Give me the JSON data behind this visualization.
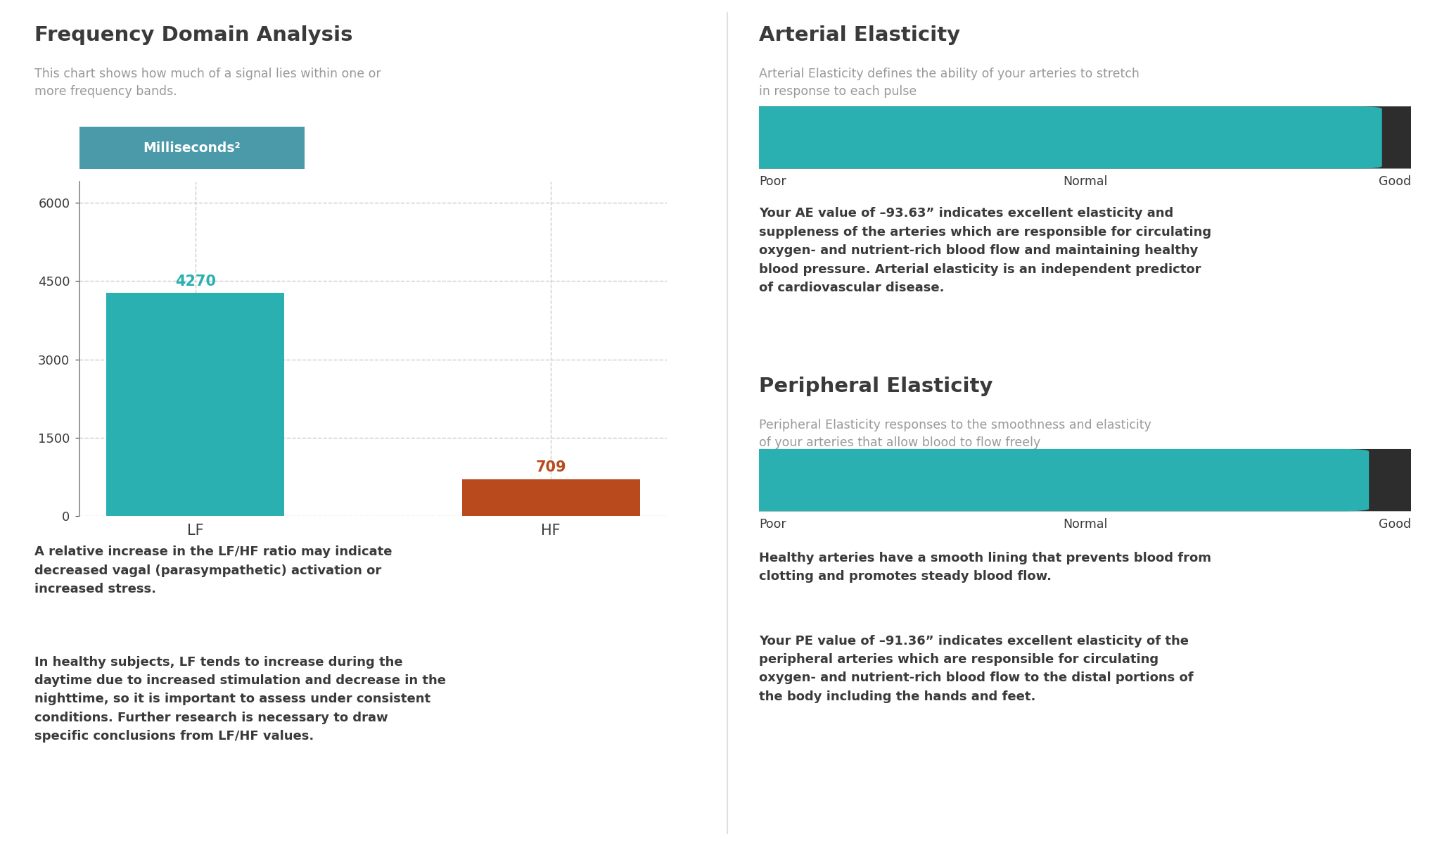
{
  "left_title": "Frequency Domain Analysis",
  "left_subtitle": "This chart shows how much of a signal lies within one or\nmore frequency bands.",
  "badge_label": "Milliseconds²",
  "bar_categories": [
    "LF",
    "HF"
  ],
  "bar_values": [
    4270,
    709
  ],
  "bar_colors": [
    "#2ab0b0",
    "#b84a1e"
  ],
  "bar_label_color_lf": "#2ab0b0",
  "bar_label_color_hf": "#b84a1e",
  "yticks": [
    0,
    1500,
    3000,
    4500,
    6000
  ],
  "ylim": [
    0,
    6400
  ],
  "bottom_text1": "A relative increase in the LF/HF ratio may indicate\ndecreased vagal (parasympathetic) activation or\nincreased stress.",
  "bottom_text2": "In healthy subjects, LF tends to increase during the\ndaytime due to increased stimulation and decrease in the\nnighttime, so it is important to assess under consistent\nconditions. Further research is necessary to draw\nspecific conclusions from LF/HF values.",
  "right_title1": "Arterial Elasticity",
  "right_subtitle1": "Arterial Elasticity defines the ability of your arteries to stretch\nin response to each pulse",
  "ae_fill": 0.915,
  "ae_text": "Your AE value of –93.63” indicates excellent elasticity and\nsuppleness of the arteries which are responsible for circulating\noxygen- and nutrient-rich blood flow and maintaining healthy\nblood pressure. Arterial elasticity is an independent predictor\nof cardiovascular disease.",
  "right_title2": "Peripheral Elasticity",
  "right_subtitle2": "Peripheral Elasticity responses to the smoothness and elasticity\nof your arteries that allow blood to flow freely",
  "pe_fill": 0.895,
  "pe_text1": "Healthy arteries have a smooth lining that prevents blood from\nclotting and promotes steady blood flow.",
  "pe_text2": "Your PE value of –91.36” indicates excellent elasticity of the\nperipheral arteries which are responsible for circulating\noxygen- and nutrient-rich blood flow to the distal portions of\nthe body including the hands and feet.",
  "gauge_bar_color": "#2ab0b0",
  "gauge_bg_color": "#2d2d2d",
  "dark_text": "#3a3a3a",
  "gray_text": "#999999",
  "badge_bg": "#4a9aaa",
  "background": "#ffffff"
}
